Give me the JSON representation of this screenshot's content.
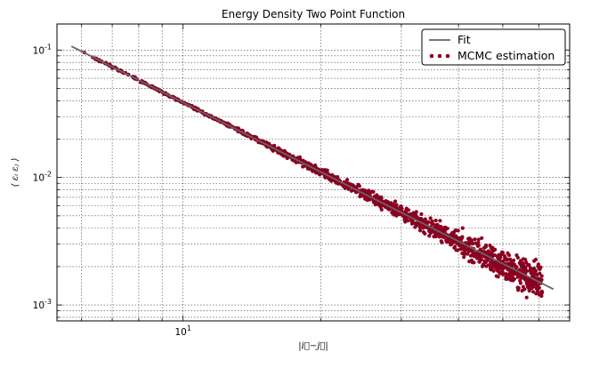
{
  "chart_data": {
    "type": "scatter",
    "title": "Energy Density Two Point Function",
    "xlabel": "|i⃗−j⃗|",
    "ylabel": "⟨ ε_i ε_j ⟩",
    "xscale": "log",
    "yscale": "log",
    "xlim": [
      5.3,
      70
    ],
    "ylim": [
      0.00075,
      0.16
    ],
    "x_ticks": [
      {
        "value": 10,
        "label": "10^1"
      }
    ],
    "y_ticks": [
      {
        "value": 0.001,
        "label": "10^-3"
      },
      {
        "value": 0.01,
        "label": "10^-2"
      },
      {
        "value": 0.1,
        "label": "10^-1"
      }
    ],
    "grid": true,
    "legend_position": "top-right",
    "series": [
      {
        "name": "Fit",
        "kind": "line",
        "color": "#666666",
        "x": [
          5.7,
          64.5
        ],
        "y": [
          0.107,
          0.00133
        ]
      },
      {
        "name": "MCMC estimation",
        "kind": "scatter",
        "color": "#8b0021",
        "x_range": [
          6.0,
          61.0
        ],
        "y_at_start": 0.095,
        "noise_growth": "increasing with x"
      }
    ]
  },
  "legend": {
    "fit_label": "Fit",
    "mcmc_label": "MCMC estimation"
  }
}
